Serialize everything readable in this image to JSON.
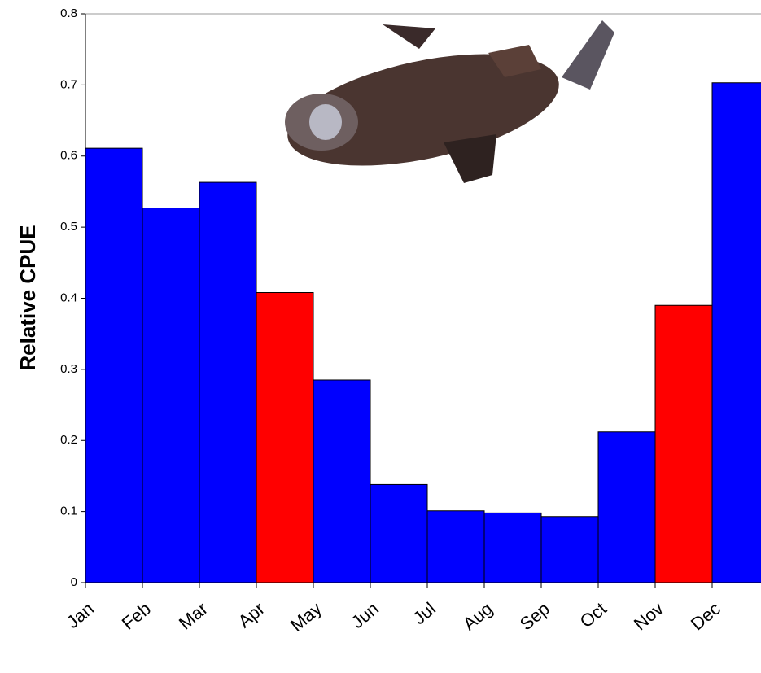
{
  "chart_data": {
    "type": "bar",
    "y_label": "Relative CPUE",
    "categories": [
      "Jan",
      "Feb",
      "Mar",
      "Apr",
      "May",
      "Jun",
      "Jul",
      "Aug",
      "Sep",
      "Oct",
      "Nov",
      "Dec"
    ],
    "values": [
      0.611,
      0.527,
      0.563,
      0.408,
      0.285,
      0.138,
      0.101,
      0.098,
      0.093,
      0.212,
      0.39,
      0.703
    ],
    "colors": [
      "#0000ff",
      "#0000ff",
      "#0000ff",
      "#ff0000",
      "#0000ff",
      "#0000ff",
      "#0000ff",
      "#0000ff",
      "#0000ff",
      "#0000ff",
      "#ff0000",
      "#0000ff"
    ],
    "ylim": [
      0,
      0.8
    ],
    "yticks": [
      0,
      0.1,
      0.2,
      0.3,
      0.4,
      0.5,
      0.6,
      0.7,
      0.8
    ],
    "grid": false
  }
}
